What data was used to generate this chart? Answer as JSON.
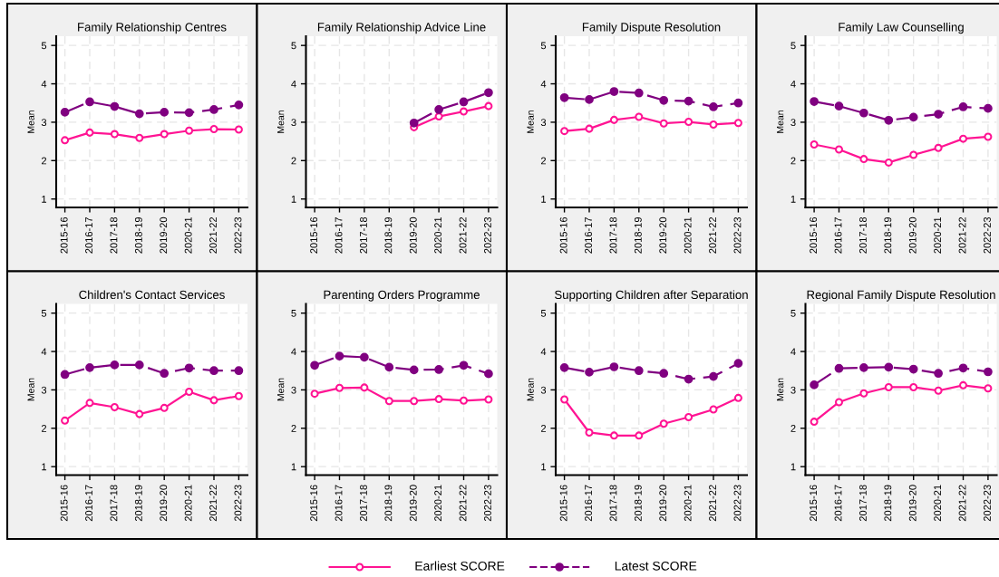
{
  "chart_data": [
    {
      "type": "line",
      "title": "Family Relationship Centres",
      "ylabel": "Mean",
      "categories": [
        "2015-16",
        "2016-17",
        "2017-18",
        "2018-19",
        "2019-20",
        "2020-21",
        "2021-22",
        "2022-23"
      ],
      "ylim": [
        0.78,
        5.24
      ],
      "yticks": [
        1,
        2,
        3,
        4,
        5
      ],
      "grid": true,
      "legend": "bottom",
      "marker": "circle",
      "series": [
        {
          "name": "Earliest SCORE",
          "color": "#ff1493",
          "line_style": "solid",
          "values": [
            2.53,
            2.73,
            2.69,
            2.59,
            2.69,
            2.78,
            2.82,
            2.81
          ]
        },
        {
          "name": "Latest SCORE",
          "color": "#800080",
          "line_style": "dashed",
          "values": [
            3.26,
            3.53,
            3.41,
            3.22,
            3.26,
            3.25,
            3.33,
            3.45
          ]
        }
      ]
    },
    {
      "type": "line",
      "title": "Family Relationship Advice Line",
      "ylabel": "Mean",
      "categories": [
        "2015-16",
        "2016-17",
        "2017-18",
        "2018-19",
        "2019-20",
        "2020-21",
        "2021-22",
        "2022-23"
      ],
      "ylim": [
        0.78,
        5.24
      ],
      "yticks": [
        1,
        2,
        3,
        4,
        5
      ],
      "grid": true,
      "marker": "circle",
      "series": [
        {
          "color": "#ff1493",
          "line_style": "solid",
          "values": [
            null,
            null,
            null,
            null,
            2.87,
            3.15,
            3.28,
            3.42
          ]
        },
        {
          "color": "#800080",
          "line_style": "dashed",
          "values": [
            null,
            null,
            null,
            null,
            2.98,
            3.33,
            3.53,
            3.77
          ]
        }
      ]
    },
    {
      "type": "line",
      "title": "Family Dispute Resolution",
      "ylabel": "Mean",
      "categories": [
        "2015-16",
        "2016-17",
        "2017-18",
        "2018-19",
        "2019-20",
        "2020-21",
        "2021-22",
        "2022-23"
      ],
      "ylim": [
        0.78,
        5.24
      ],
      "yticks": [
        1,
        2,
        3,
        4,
        5
      ],
      "grid": true,
      "marker": "circle",
      "series": [
        {
          "color": "#ff1493",
          "line_style": "solid",
          "values": [
            2.77,
            2.83,
            3.06,
            3.14,
            2.97,
            3.01,
            2.94,
            2.98
          ]
        },
        {
          "color": "#800080",
          "line_style": "dashed",
          "values": [
            3.64,
            3.59,
            3.8,
            3.76,
            3.57,
            3.55,
            3.4,
            3.5
          ]
        }
      ]
    },
    {
      "type": "line",
      "title": "Family Law Counselling",
      "ylabel": "Mean",
      "categories": [
        "2015-16",
        "2016-17",
        "2017-18",
        "2018-19",
        "2019-20",
        "2020-21",
        "2021-22",
        "2022-23"
      ],
      "ylim": [
        0.78,
        5.24
      ],
      "yticks": [
        1,
        2,
        3,
        4,
        5
      ],
      "grid": true,
      "marker": "circle",
      "series": [
        {
          "color": "#ff1493",
          "line_style": "solid",
          "values": [
            2.42,
            2.29,
            2.04,
            1.95,
            2.15,
            2.33,
            2.57,
            2.62
          ]
        },
        {
          "color": "#800080",
          "line_style": "dashed",
          "values": [
            3.54,
            3.42,
            3.24,
            3.05,
            3.13,
            3.21,
            3.4,
            3.36
          ]
        }
      ]
    },
    {
      "type": "line",
      "title": "Children's Contact Services",
      "ylabel": "Mean",
      "categories": [
        "2015-16",
        "2016-17",
        "2017-18",
        "2018-19",
        "2019-20",
        "2020-21",
        "2021-22",
        "2022-23"
      ],
      "ylim": [
        0.78,
        5.24
      ],
      "yticks": [
        1,
        2,
        3,
        4,
        5
      ],
      "grid": true,
      "marker": "circle",
      "series": [
        {
          "color": "#ff1493",
          "line_style": "solid",
          "values": [
            2.2,
            2.66,
            2.55,
            2.37,
            2.53,
            2.95,
            2.73,
            2.84
          ]
        },
        {
          "color": "#800080",
          "line_style": "dashed",
          "values": [
            3.4,
            3.58,
            3.65,
            3.65,
            3.43,
            3.57,
            3.5,
            3.5
          ]
        }
      ]
    },
    {
      "type": "line",
      "title": "Parenting Orders Programme",
      "ylabel": "Mean",
      "categories": [
        "2015-16",
        "2016-17",
        "2017-18",
        "2018-19",
        "2019-20",
        "2020-21",
        "2021-22",
        "2022-23"
      ],
      "ylim": [
        0.78,
        5.24
      ],
      "yticks": [
        1,
        2,
        3,
        4,
        5
      ],
      "grid": true,
      "marker": "circle",
      "series": [
        {
          "color": "#ff1493",
          "line_style": "solid",
          "values": [
            2.9,
            3.05,
            3.06,
            2.71,
            2.71,
            2.76,
            2.72,
            2.75
          ]
        },
        {
          "color": "#800080",
          "line_style": "dashed",
          "values": [
            3.64,
            3.88,
            3.85,
            3.59,
            3.52,
            3.53,
            3.64,
            3.42
          ]
        }
      ]
    },
    {
      "type": "line",
      "title": "Supporting Children after Separation",
      "ylabel": "Mean",
      "categories": [
        "2015-16",
        "2016-17",
        "2017-18",
        "2018-19",
        "2019-20",
        "2020-21",
        "2021-22",
        "2022-23"
      ],
      "ylim": [
        0.78,
        5.24
      ],
      "yticks": [
        1,
        2,
        3,
        4,
        5
      ],
      "grid": true,
      "marker": "circle",
      "series": [
        {
          "color": "#ff1493",
          "line_style": "solid",
          "values": [
            2.75,
            1.89,
            1.81,
            1.81,
            2.12,
            2.29,
            2.49,
            2.79
          ]
        },
        {
          "color": "#800080",
          "line_style": "dashed",
          "values": [
            3.58,
            3.46,
            3.6,
            3.5,
            3.43,
            3.28,
            3.35,
            3.69
          ]
        }
      ]
    },
    {
      "type": "line",
      "title": "Regional Family Dispute Resolution",
      "ylabel": "Mean",
      "categories": [
        "2015-16",
        "2016-17",
        "2017-18",
        "2018-19",
        "2019-20",
        "2020-21",
        "2021-22",
        "2022-23"
      ],
      "ylim": [
        0.78,
        5.24
      ],
      "yticks": [
        1,
        2,
        3,
        4,
        5
      ],
      "grid": true,
      "marker": "circle",
      "series": [
        {
          "color": "#ff1493",
          "line_style": "solid",
          "values": [
            2.17,
            2.68,
            2.91,
            3.07,
            3.07,
            2.98,
            3.12,
            3.04
          ]
        },
        {
          "color": "#800080",
          "line_style": "dashed",
          "values": [
            3.13,
            3.56,
            3.58,
            3.59,
            3.54,
            3.43,
            3.57,
            3.47
          ]
        }
      ]
    }
  ]
}
